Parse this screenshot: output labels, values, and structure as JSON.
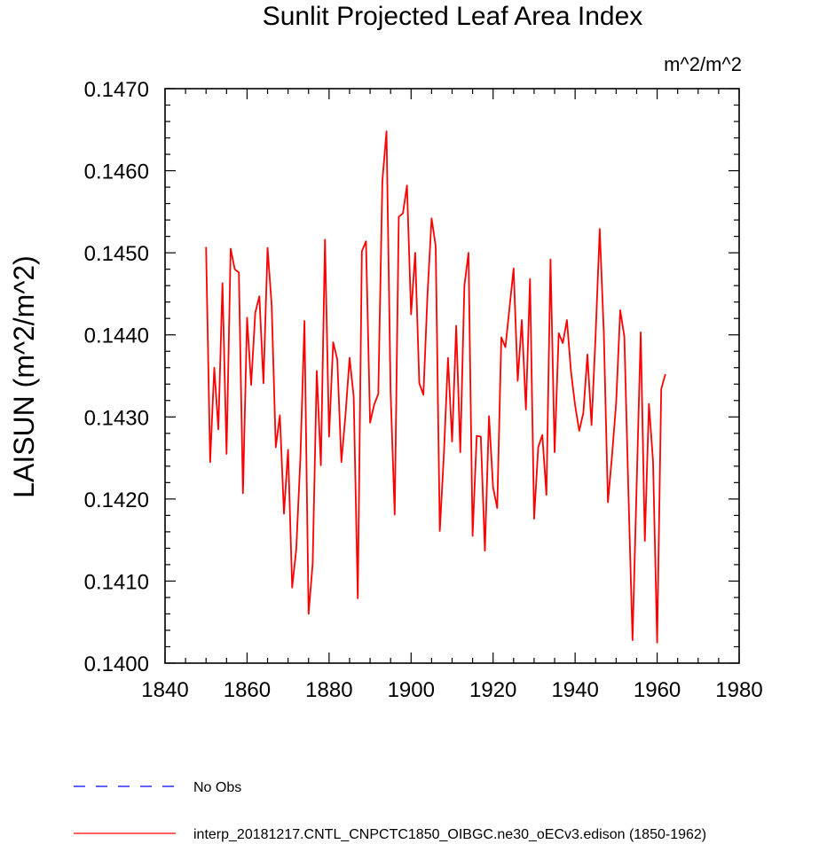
{
  "chart_data": {
    "type": "line",
    "title": "Sunlit Projected Leaf Area Index",
    "units": "m^2/m^2",
    "ylabel": "LAISUN  (m^2/m^2)",
    "xlabel": "",
    "xlim": [
      1840,
      1980
    ],
    "ylim": [
      0.14,
      0.147
    ],
    "x_ticks": [
      1840,
      1860,
      1880,
      1900,
      1920,
      1940,
      1960,
      1980
    ],
    "x_tick_labels": [
      "1840",
      "1860",
      "1880",
      "1900",
      "1920",
      "1940",
      "1960",
      "1980"
    ],
    "y_ticks": [
      0.14,
      0.141,
      0.142,
      0.143,
      0.144,
      0.145,
      0.146,
      0.147
    ],
    "y_tick_labels": [
      "0.1400",
      "0.1410",
      "0.1420",
      "0.1430",
      "0.1440",
      "0.1450",
      "0.1460",
      "0.1470"
    ],
    "grid": false,
    "series": [
      {
        "name": "interp_20181217.CNTL_CNPCTC1850_OIBGC.ne30_oECv3.edison (1850-1962)",
        "color": "#ff0000",
        "dash": "solid",
        "x": [
          1850,
          1851,
          1852,
          1853,
          1854,
          1855,
          1856,
          1857,
          1858,
          1859,
          1860,
          1861,
          1862,
          1863,
          1864,
          1865,
          1866,
          1867,
          1868,
          1869,
          1870,
          1871,
          1872,
          1873,
          1874,
          1875,
          1876,
          1877,
          1878,
          1879,
          1880,
          1881,
          1882,
          1883,
          1884,
          1885,
          1886,
          1887,
          1888,
          1889,
          1890,
          1891,
          1892,
          1893,
          1894,
          1895,
          1896,
          1897,
          1898,
          1899,
          1900,
          1901,
          1902,
          1903,
          1904,
          1905,
          1906,
          1907,
          1908,
          1909,
          1910,
          1911,
          1912,
          1913,
          1914,
          1915,
          1916,
          1917,
          1918,
          1919,
          1920,
          1921,
          1922,
          1923,
          1924,
          1925,
          1926,
          1927,
          1928,
          1929,
          1930,
          1931,
          1932,
          1933,
          1934,
          1935,
          1936,
          1937,
          1938,
          1939,
          1940,
          1941,
          1942,
          1943,
          1944,
          1945,
          1946,
          1947,
          1948,
          1949,
          1950,
          1951,
          1952,
          1953,
          1954,
          1955,
          1956,
          1957,
          1958,
          1959,
          1960,
          1961,
          1962
        ],
        "values": [
          0.14507,
          0.14245,
          0.1436,
          0.14285,
          0.14463,
          0.14255,
          0.14505,
          0.1448,
          0.14476,
          0.14207,
          0.14421,
          0.14339,
          0.14427,
          0.14447,
          0.14341,
          0.14506,
          0.14436,
          0.14263,
          0.14302,
          0.14182,
          0.1426,
          0.14092,
          0.14139,
          0.1425,
          0.14417,
          0.1406,
          0.14121,
          0.14356,
          0.14241,
          0.14516,
          0.14276,
          0.14391,
          0.1437,
          0.14245,
          0.14302,
          0.14372,
          0.14325,
          0.14079,
          0.14502,
          0.14514,
          0.14293,
          0.14315,
          0.14328,
          0.14588,
          0.14648,
          0.14331,
          0.14181,
          0.14544,
          0.14548,
          0.14582,
          0.14425,
          0.145,
          0.14341,
          0.14327,
          0.14449,
          0.14542,
          0.14508,
          0.14161,
          0.14255,
          0.14372,
          0.1427,
          0.14411,
          0.14257,
          0.1446,
          0.145,
          0.14155,
          0.14277,
          0.14276,
          0.14137,
          0.14301,
          0.14214,
          0.14189,
          0.14397,
          0.14385,
          0.14433,
          0.14481,
          0.14344,
          0.14418,
          0.14309,
          0.14468,
          0.14176,
          0.14263,
          0.14278,
          0.14205,
          0.14492,
          0.14257,
          0.14402,
          0.1439,
          0.14418,
          0.14355,
          0.14314,
          0.14283,
          0.14305,
          0.14376,
          0.1429,
          0.144,
          0.14529,
          0.14402,
          0.14196,
          0.14253,
          0.14317,
          0.1443,
          0.14398,
          0.14208,
          0.14028,
          0.14216,
          0.14403,
          0.14149,
          0.14316,
          0.14246,
          0.14025,
          0.14334,
          0.14352
        ]
      },
      {
        "name": "No Obs",
        "color": "#0000ff",
        "dash": "dashed",
        "x": [],
        "values": []
      }
    ],
    "legend_position": "bottom-left"
  }
}
